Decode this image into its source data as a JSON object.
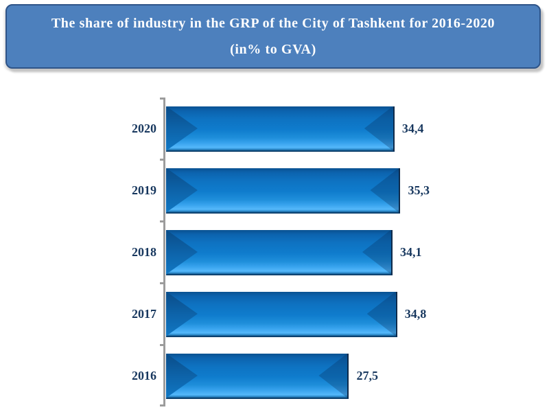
{
  "title": {
    "line1": "The share of industry in the GRP of the City of Tashkent for 2016-2020",
    "line2": "(in% to GVA)"
  },
  "chart_data": {
    "type": "bar",
    "orientation": "horizontal",
    "title": "The share of industry in the GRP of the City of Tashkent for 2016-2020 (in% to GVA)",
    "categories": [
      "2020",
      "2019",
      "2018",
      "2017",
      "2016"
    ],
    "values": [
      34.4,
      35.3,
      34.1,
      34.8,
      27.5
    ],
    "value_labels": [
      "34,4",
      "35,3",
      "34,1",
      "34,8",
      "27,5"
    ],
    "decimal_separator": ",",
    "xlabel": "",
    "ylabel": "",
    "xlim": [
      0,
      36.6
    ],
    "grid": false,
    "legend": false,
    "colors": {
      "bar_fill": "#0e7ccd",
      "bar_fill_light": "#54b8fb",
      "bar_fill_dark": "#0a5291",
      "bar_edge": "#0e2a4a",
      "label_text": "#17375e",
      "axis": "#9c9c9c",
      "title_bg": "#4d80bd",
      "title_border": "#2f5488",
      "title_text": "#ffffff"
    }
  }
}
